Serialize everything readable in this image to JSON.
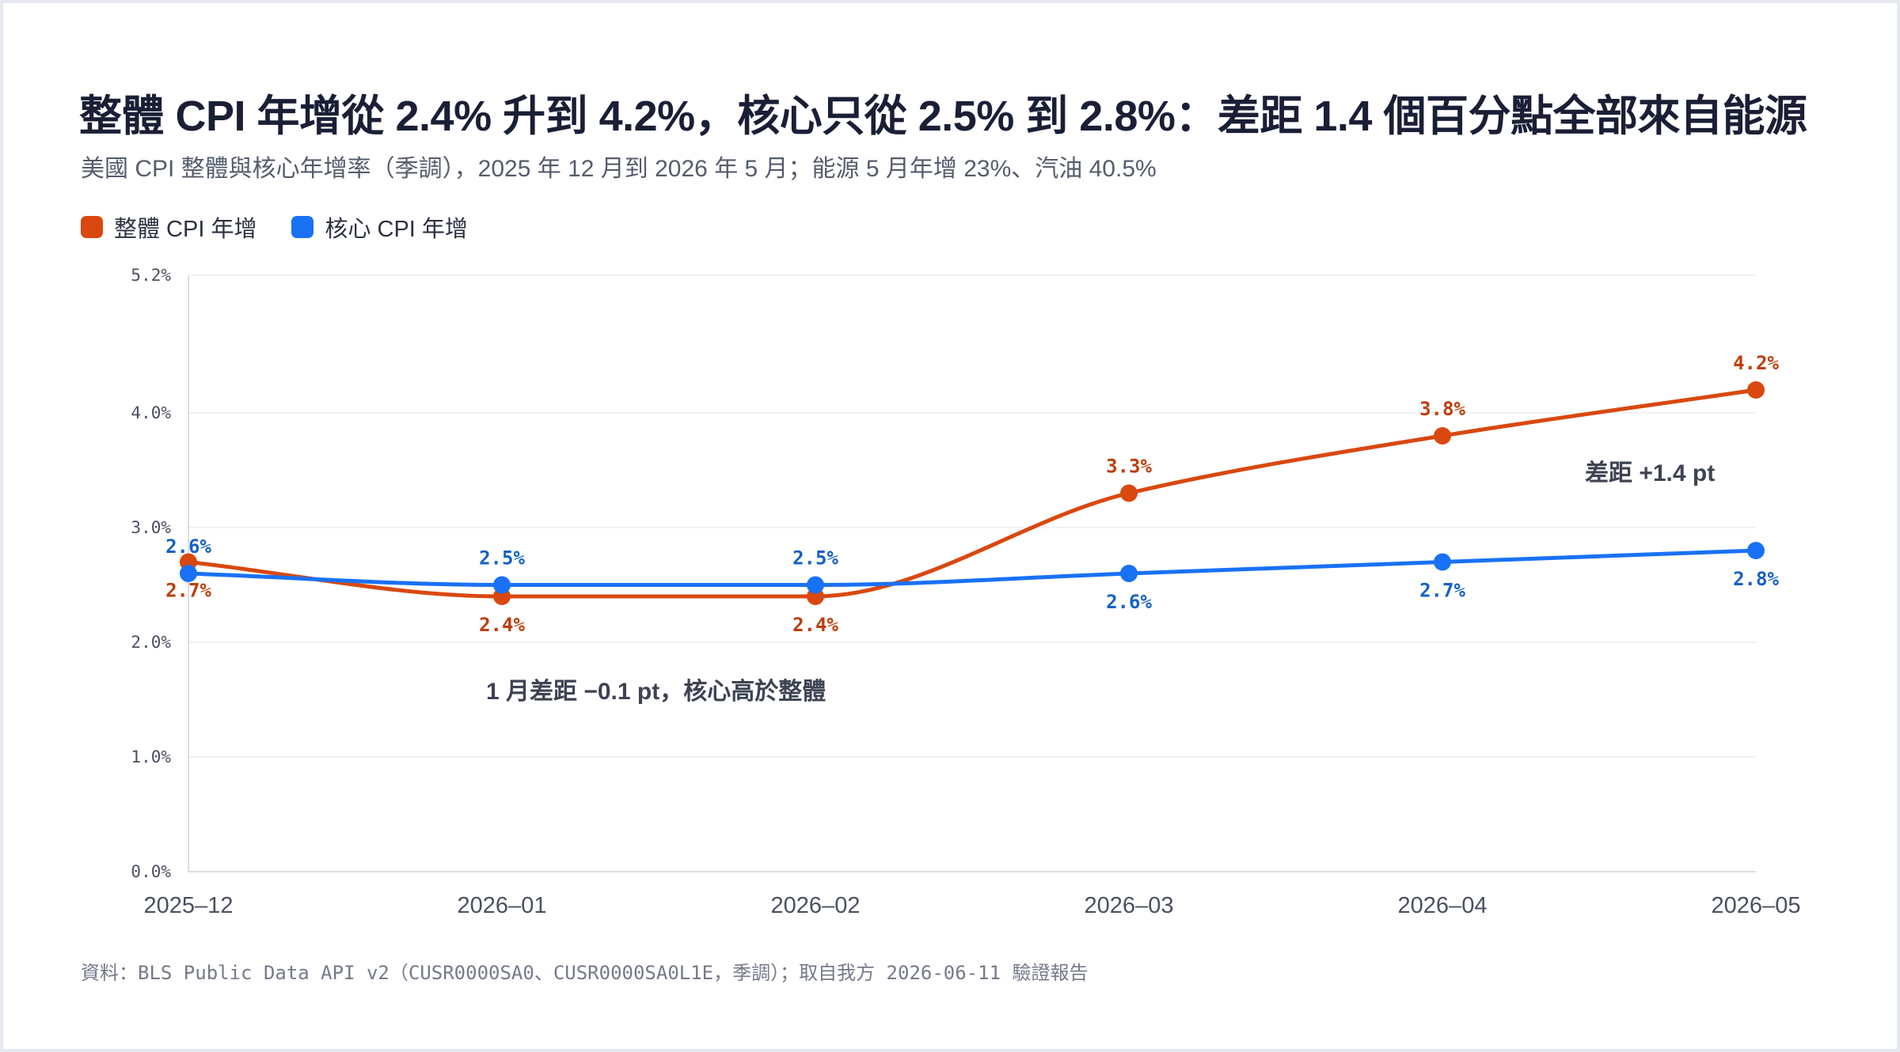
{
  "title": "整體 CPI 年增從 2.4% 升到 4.2%，核心只從 2.5% 到 2.8%：差距 1.4 個百分點全部來自能源",
  "subtitle": "美國 CPI 整體與核心年增率（季調），2025 年 12 月到 2026 年 5 月；能源 5 月年增 23%、汽油 40.5%",
  "footer": "資料：BLS Public Data API v2（CUSR0000SA0、CUSR0000SA0L1E，季調）；取自我方 2026-06-11 驗證報告",
  "colors": {
    "headline": "#d9480f",
    "core": "#1971f5"
  },
  "chart_data": {
    "type": "line",
    "categories": [
      "2025–12",
      "2026–01",
      "2026–02",
      "2026–03",
      "2026–04",
      "2026–05"
    ],
    "series": [
      {
        "name": "整體 CPI 年增",
        "color": "#d9480f",
        "values": [
          2.7,
          2.4,
          2.4,
          3.3,
          3.8,
          4.2
        ],
        "labels": [
          "2.7%",
          "2.4%",
          "2.4%",
          "3.3%",
          "3.8%",
          "4.2%"
        ]
      },
      {
        "name": "核心 CPI 年增",
        "color": "#1971f5",
        "values": [
          2.6,
          2.5,
          2.5,
          2.6,
          2.7,
          2.8
        ],
        "labels": [
          "2.6%",
          "2.5%",
          "2.5%",
          "2.6%",
          "2.7%",
          "2.8%"
        ]
      }
    ],
    "y_ticks": [
      {
        "value": 0,
        "label": "0.0%"
      },
      {
        "value": 1,
        "label": "1.0%"
      },
      {
        "value": 2,
        "label": "2.0%"
      },
      {
        "value": 3,
        "label": "3.0%"
      },
      {
        "value": 4,
        "label": "4.0%"
      },
      {
        "value": 5.2,
        "label": "5.2%"
      }
    ],
    "ylim": [
      0,
      5.2
    ],
    "grid": true,
    "legend": "top-left",
    "annotations": [
      {
        "text": "1 月差距 −0.1 pt，核心高於整體",
        "near": "2026–01"
      },
      {
        "text": "差距 +1.4 pt",
        "near": "2026–05"
      }
    ]
  }
}
